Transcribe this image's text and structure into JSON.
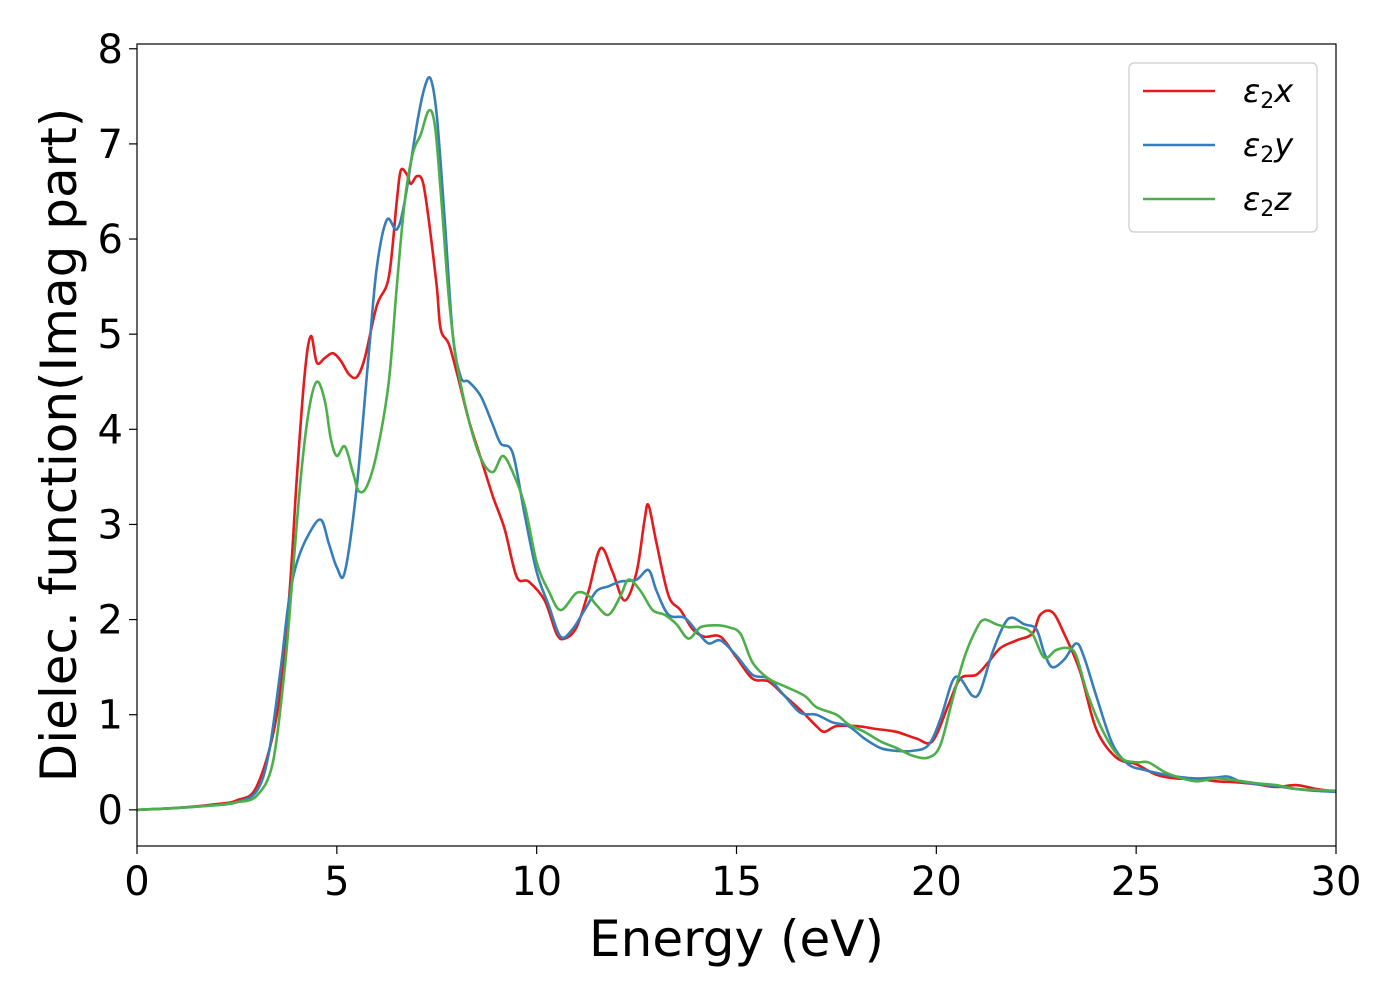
{
  "chart_data": {
    "type": "line",
    "title": "",
    "xlabel": "Energy (eV)",
    "ylabel": "Dielec. function(Imag part)",
    "xlim": [
      0,
      30
    ],
    "ylim": [
      -0.38,
      8.05
    ],
    "xticks": [
      0,
      5,
      10,
      15,
      20,
      25,
      30
    ],
    "yticks": [
      0,
      1,
      2,
      3,
      4,
      5,
      6,
      7,
      8
    ],
    "grid": false,
    "legend_position": "top-right",
    "series": [
      {
        "name": "ε₂x",
        "legend": {
          "base": "ε",
          "sub": "2",
          "tail": "x"
        },
        "color": "#e41a1c",
        "points": [
          [
            0,
            0
          ],
          [
            1,
            0.02
          ],
          [
            2,
            0.06
          ],
          [
            2.5,
            0.1
          ],
          [
            3,
            0.25
          ],
          [
            3.5,
            1.0
          ],
          [
            3.8,
            2.2
          ],
          [
            4.0,
            3.5
          ],
          [
            4.2,
            4.6
          ],
          [
            4.35,
            4.98
          ],
          [
            4.5,
            4.7
          ],
          [
            4.7,
            4.75
          ],
          [
            4.9,
            4.8
          ],
          [
            5.1,
            4.72
          ],
          [
            5.3,
            4.58
          ],
          [
            5.5,
            4.55
          ],
          [
            5.7,
            4.75
          ],
          [
            6.0,
            5.3
          ],
          [
            6.3,
            5.6
          ],
          [
            6.5,
            6.4
          ],
          [
            6.6,
            6.72
          ],
          [
            6.75,
            6.68
          ],
          [
            6.85,
            6.58
          ],
          [
            7.0,
            6.66
          ],
          [
            7.15,
            6.6
          ],
          [
            7.3,
            6.2
          ],
          [
            7.5,
            5.5
          ],
          [
            7.6,
            5.05
          ],
          [
            7.8,
            4.9
          ],
          [
            8.0,
            4.6
          ],
          [
            8.3,
            4.1
          ],
          [
            8.6,
            3.7
          ],
          [
            8.9,
            3.3
          ],
          [
            9.2,
            2.95
          ],
          [
            9.5,
            2.45
          ],
          [
            9.8,
            2.4
          ],
          [
            10.2,
            2.2
          ],
          [
            10.5,
            1.85
          ],
          [
            10.7,
            1.8
          ],
          [
            11.0,
            1.92
          ],
          [
            11.3,
            2.3
          ],
          [
            11.6,
            2.75
          ],
          [
            11.9,
            2.5
          ],
          [
            12.2,
            2.2
          ],
          [
            12.5,
            2.5
          ],
          [
            12.7,
            3.05
          ],
          [
            12.8,
            3.2
          ],
          [
            13.0,
            2.8
          ],
          [
            13.3,
            2.25
          ],
          [
            13.6,
            2.1
          ],
          [
            13.9,
            1.9
          ],
          [
            14.2,
            1.82
          ],
          [
            14.6,
            1.82
          ],
          [
            15.0,
            1.6
          ],
          [
            15.4,
            1.38
          ],
          [
            15.8,
            1.35
          ],
          [
            16.2,
            1.2
          ],
          [
            16.6,
            1.05
          ],
          [
            17.0,
            0.88
          ],
          [
            17.2,
            0.82
          ],
          [
            17.5,
            0.88
          ],
          [
            18.0,
            0.88
          ],
          [
            18.5,
            0.85
          ],
          [
            19.0,
            0.82
          ],
          [
            19.5,
            0.75
          ],
          [
            19.9,
            0.72
          ],
          [
            20.3,
            1.1
          ],
          [
            20.6,
            1.38
          ],
          [
            21.0,
            1.42
          ],
          [
            21.3,
            1.55
          ],
          [
            21.6,
            1.7
          ],
          [
            22.0,
            1.78
          ],
          [
            22.4,
            1.85
          ],
          [
            22.6,
            2.05
          ],
          [
            22.9,
            2.08
          ],
          [
            23.2,
            1.85
          ],
          [
            23.6,
            1.45
          ],
          [
            24.0,
            0.85
          ],
          [
            24.5,
            0.55
          ],
          [
            25.0,
            0.48
          ],
          [
            25.5,
            0.37
          ],
          [
            26.0,
            0.33
          ],
          [
            26.5,
            0.33
          ],
          [
            27.0,
            0.3
          ],
          [
            27.5,
            0.29
          ],
          [
            28.0,
            0.27
          ],
          [
            28.5,
            0.24
          ],
          [
            29.0,
            0.26
          ],
          [
            29.5,
            0.22
          ],
          [
            30,
            0.19
          ]
        ]
      },
      {
        "name": "ε₂y",
        "legend": {
          "base": "ε",
          "sub": "2",
          "tail": "y"
        },
        "color": "#377eb8",
        "points": [
          [
            0,
            0
          ],
          [
            1,
            0.02
          ],
          [
            2,
            0.05
          ],
          [
            2.5,
            0.08
          ],
          [
            3,
            0.2
          ],
          [
            3.3,
            0.6
          ],
          [
            3.6,
            1.5
          ],
          [
            3.8,
            2.2
          ],
          [
            4.0,
            2.6
          ],
          [
            4.3,
            2.9
          ],
          [
            4.6,
            3.05
          ],
          [
            4.8,
            2.8
          ],
          [
            5.0,
            2.55
          ],
          [
            5.2,
            2.5
          ],
          [
            5.5,
            3.4
          ],
          [
            5.8,
            4.8
          ],
          [
            6.0,
            5.7
          ],
          [
            6.25,
            6.2
          ],
          [
            6.5,
            6.1
          ],
          [
            6.7,
            6.4
          ],
          [
            7.0,
            7.2
          ],
          [
            7.2,
            7.6
          ],
          [
            7.35,
            7.68
          ],
          [
            7.5,
            7.3
          ],
          [
            7.7,
            6.2
          ],
          [
            7.9,
            5.0
          ],
          [
            8.1,
            4.55
          ],
          [
            8.3,
            4.5
          ],
          [
            8.6,
            4.35
          ],
          [
            8.9,
            4.05
          ],
          [
            9.1,
            3.85
          ],
          [
            9.4,
            3.75
          ],
          [
            9.7,
            3.1
          ],
          [
            10.0,
            2.5
          ],
          [
            10.3,
            2.15
          ],
          [
            10.6,
            1.82
          ],
          [
            10.9,
            1.9
          ],
          [
            11.2,
            2.1
          ],
          [
            11.5,
            2.3
          ],
          [
            11.8,
            2.35
          ],
          [
            12.1,
            2.4
          ],
          [
            12.5,
            2.42
          ],
          [
            12.8,
            2.52
          ],
          [
            13.0,
            2.3
          ],
          [
            13.3,
            2.05
          ],
          [
            13.7,
            2.02
          ],
          [
            14.0,
            1.88
          ],
          [
            14.3,
            1.75
          ],
          [
            14.6,
            1.78
          ],
          [
            15.0,
            1.62
          ],
          [
            15.4,
            1.42
          ],
          [
            15.8,
            1.38
          ],
          [
            16.2,
            1.2
          ],
          [
            16.6,
            1.02
          ],
          [
            17.0,
            1.0
          ],
          [
            17.4,
            0.92
          ],
          [
            17.8,
            0.88
          ],
          [
            18.2,
            0.75
          ],
          [
            18.6,
            0.65
          ],
          [
            19.0,
            0.62
          ],
          [
            19.4,
            0.62
          ],
          [
            19.8,
            0.68
          ],
          [
            20.1,
            0.95
          ],
          [
            20.4,
            1.35
          ],
          [
            20.6,
            1.38
          ],
          [
            20.9,
            1.2
          ],
          [
            21.1,
            1.25
          ],
          [
            21.4,
            1.65
          ],
          [
            21.7,
            1.95
          ],
          [
            21.9,
            2.02
          ],
          [
            22.2,
            1.95
          ],
          [
            22.5,
            1.9
          ],
          [
            22.7,
            1.65
          ],
          [
            22.9,
            1.5
          ],
          [
            23.2,
            1.58
          ],
          [
            23.5,
            1.75
          ],
          [
            23.7,
            1.6
          ],
          [
            24.0,
            1.2
          ],
          [
            24.4,
            0.7
          ],
          [
            24.8,
            0.48
          ],
          [
            25.2,
            0.42
          ],
          [
            25.6,
            0.38
          ],
          [
            26.0,
            0.35
          ],
          [
            26.5,
            0.33
          ],
          [
            27.0,
            0.34
          ],
          [
            27.3,
            0.35
          ],
          [
            27.6,
            0.3
          ],
          [
            28.0,
            0.27
          ],
          [
            28.5,
            0.25
          ],
          [
            29.0,
            0.22
          ],
          [
            29.5,
            0.2
          ],
          [
            30,
            0.19
          ]
        ]
      },
      {
        "name": "ε₂z",
        "legend": {
          "base": "ε",
          "sub": "2",
          "tail": "z"
        },
        "color": "#4daf4a",
        "points": [
          [
            0,
            0
          ],
          [
            1,
            0.02
          ],
          [
            2,
            0.05
          ],
          [
            2.5,
            0.08
          ],
          [
            3,
            0.15
          ],
          [
            3.4,
            0.5
          ],
          [
            3.7,
            1.5
          ],
          [
            3.9,
            2.5
          ],
          [
            4.1,
            3.5
          ],
          [
            4.3,
            4.2
          ],
          [
            4.5,
            4.5
          ],
          [
            4.7,
            4.3
          ],
          [
            4.85,
            3.9
          ],
          [
            5.0,
            3.72
          ],
          [
            5.2,
            3.82
          ],
          [
            5.4,
            3.55
          ],
          [
            5.55,
            3.35
          ],
          [
            5.75,
            3.4
          ],
          [
            6.0,
            3.75
          ],
          [
            6.3,
            4.5
          ],
          [
            6.5,
            5.5
          ],
          [
            6.7,
            6.4
          ],
          [
            6.9,
            6.9
          ],
          [
            7.1,
            7.1
          ],
          [
            7.3,
            7.35
          ],
          [
            7.45,
            7.2
          ],
          [
            7.6,
            6.5
          ],
          [
            7.8,
            5.4
          ],
          [
            8.0,
            4.7
          ],
          [
            8.3,
            4.1
          ],
          [
            8.6,
            3.7
          ],
          [
            8.9,
            3.55
          ],
          [
            9.15,
            3.72
          ],
          [
            9.4,
            3.55
          ],
          [
            9.7,
            3.2
          ],
          [
            10.0,
            2.6
          ],
          [
            10.3,
            2.3
          ],
          [
            10.6,
            2.1
          ],
          [
            11.0,
            2.28
          ],
          [
            11.3,
            2.25
          ],
          [
            11.5,
            2.15
          ],
          [
            11.8,
            2.05
          ],
          [
            12.1,
            2.25
          ],
          [
            12.3,
            2.42
          ],
          [
            12.6,
            2.3
          ],
          [
            12.9,
            2.1
          ],
          [
            13.2,
            2.05
          ],
          [
            13.5,
            1.95
          ],
          [
            13.8,
            1.8
          ],
          [
            14.1,
            1.92
          ],
          [
            14.5,
            1.94
          ],
          [
            14.8,
            1.92
          ],
          [
            15.1,
            1.85
          ],
          [
            15.4,
            1.55
          ],
          [
            15.8,
            1.38
          ],
          [
            16.2,
            1.3
          ],
          [
            16.7,
            1.2
          ],
          [
            17.0,
            1.08
          ],
          [
            17.5,
            1.0
          ],
          [
            17.8,
            0.9
          ],
          [
            18.2,
            0.82
          ],
          [
            18.6,
            0.72
          ],
          [
            19.0,
            0.65
          ],
          [
            19.4,
            0.57
          ],
          [
            19.8,
            0.55
          ],
          [
            20.1,
            0.68
          ],
          [
            20.4,
            1.15
          ],
          [
            20.7,
            1.6
          ],
          [
            21.0,
            1.9
          ],
          [
            21.2,
            2.0
          ],
          [
            21.5,
            1.95
          ],
          [
            21.8,
            1.92
          ],
          [
            22.1,
            1.92
          ],
          [
            22.4,
            1.85
          ],
          [
            22.7,
            1.6
          ],
          [
            23.0,
            1.68
          ],
          [
            23.3,
            1.7
          ],
          [
            23.5,
            1.62
          ],
          [
            23.8,
            1.2
          ],
          [
            24.2,
            0.8
          ],
          [
            24.6,
            0.55
          ],
          [
            25.0,
            0.5
          ],
          [
            25.3,
            0.5
          ],
          [
            25.7,
            0.4
          ],
          [
            26.0,
            0.35
          ],
          [
            26.5,
            0.3
          ],
          [
            27.0,
            0.33
          ],
          [
            27.5,
            0.31
          ],
          [
            28.0,
            0.28
          ],
          [
            28.5,
            0.26
          ],
          [
            29.0,
            0.22
          ],
          [
            29.5,
            0.21
          ],
          [
            30,
            0.2
          ]
        ]
      }
    ]
  }
}
